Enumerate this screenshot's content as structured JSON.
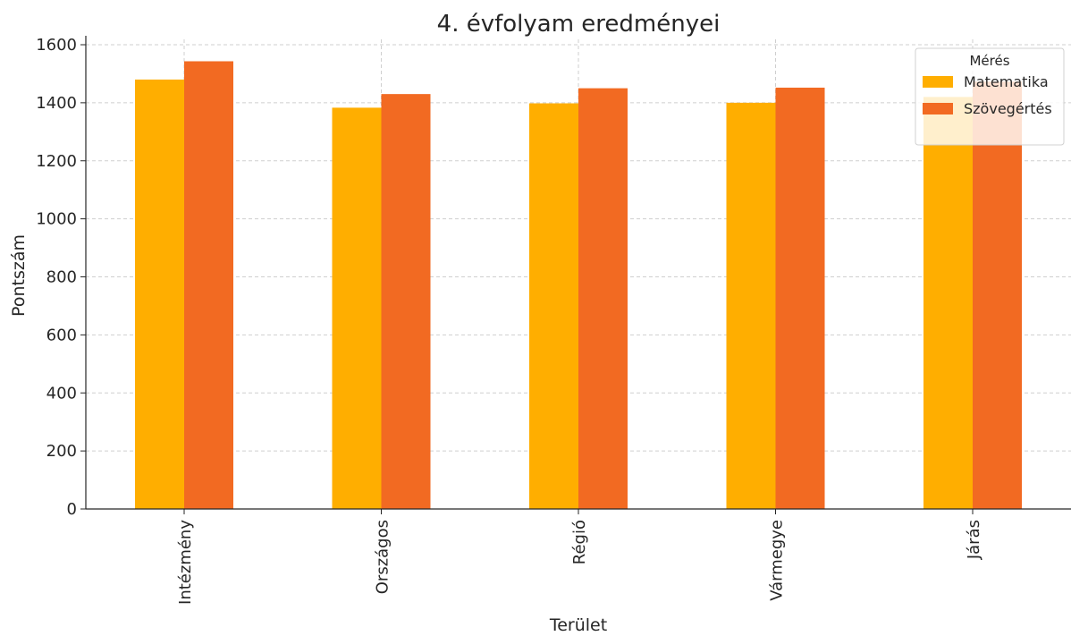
{
  "chart_data": {
    "type": "bar",
    "title": "4. évfolyam eredményei",
    "xlabel": "Terület",
    "ylabel": "Pontszám",
    "categories": [
      "Intézmény",
      "Országos",
      "Régió",
      "Vármegye",
      "Járás"
    ],
    "series": [
      {
        "name": "Matematika",
        "values": [
          1480,
          1383,
          1398,
          1400,
          1420
        ],
        "color": "#FFAE00"
      },
      {
        "name": "Szövegértés",
        "values": [
          1543,
          1430,
          1450,
          1452,
          1473
        ],
        "color": "#F26A22"
      }
    ],
    "ylim": [
      0,
      1600
    ],
    "yticks": [
      0,
      200,
      400,
      600,
      800,
      1000,
      1200,
      1400,
      1600
    ],
    "grid": true,
    "legend": {
      "title": "Mérés",
      "placement": "top-right"
    }
  }
}
